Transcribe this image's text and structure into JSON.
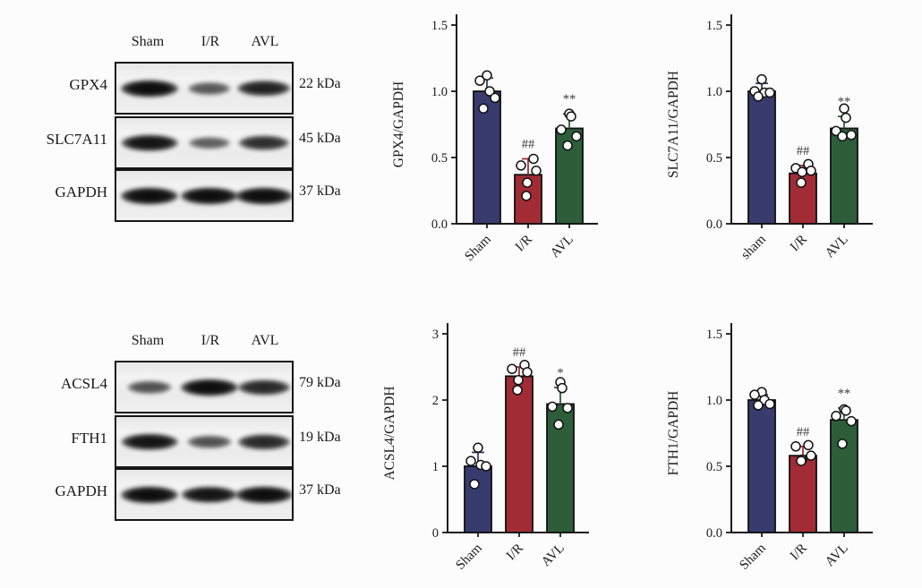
{
  "page": {
    "background": "#fcfcfc"
  },
  "group_colors": {
    "sham": "#383b6d",
    "ir": "#a12c35",
    "avl": "#2d5e39"
  },
  "blot_panels": [
    {
      "name": "ferroptosis-markers-top",
      "lane_headers": [
        "Sham",
        "I/R",
        "AVL"
      ],
      "rows": [
        {
          "protein": "GPX4",
          "weight": "22 kDa",
          "band_intensities": [
            1.0,
            0.45,
            0.85
          ]
        },
        {
          "protein": "SLC7A11",
          "weight": "45 kDa",
          "band_intensities": [
            0.95,
            0.4,
            0.75
          ]
        },
        {
          "protein": "GAPDH",
          "weight": "37 kDa",
          "band_intensities": [
            1.0,
            1.0,
            1.0
          ]
        }
      ]
    },
    {
      "name": "ferroptosis-markers-bottom",
      "lane_headers": [
        "Sham",
        "I/R",
        "AVL"
      ],
      "rows": [
        {
          "protein": "ACSL4",
          "weight": "79 kDa",
          "band_intensities": [
            0.5,
            1.0,
            0.8
          ]
        },
        {
          "protein": "FTH1",
          "weight": "19 kDa",
          "band_intensities": [
            0.95,
            0.5,
            0.8
          ]
        },
        {
          "protein": "GAPDH",
          "weight": "37 kDa",
          "band_intensities": [
            1.0,
            0.95,
            1.0
          ]
        }
      ]
    }
  ],
  "chart_data": [
    {
      "type": "bar",
      "title": "",
      "xlabel": "",
      "ylabel": "GPX4/GAPDH",
      "categories": [
        "Sham",
        "I/R",
        "AVL"
      ],
      "ylim": [
        0,
        1.5
      ],
      "yticks": [
        "0.0",
        "0.5",
        "1.0",
        "1.5"
      ],
      "grid": false,
      "legend": false,
      "bar_colors": [
        "#383b6d",
        "#a12c35",
        "#2d5e39"
      ],
      "series": [
        {
          "name": "Sham",
          "mean": 1.0,
          "sd_top": 1.1,
          "points": [
            1.12,
            1.08,
            1.0,
            0.95,
            0.87
          ],
          "annotation": ""
        },
        {
          "name": "I/R",
          "mean": 0.37,
          "sd_top": 0.49,
          "points": [
            0.49,
            0.44,
            0.4,
            0.31,
            0.21
          ],
          "annotation": "##"
        },
        {
          "name": "AVL",
          "mean": 0.72,
          "sd_top": 0.83,
          "points": [
            0.83,
            0.81,
            0.71,
            0.66,
            0.59
          ],
          "annotation": "**"
        }
      ]
    },
    {
      "type": "bar",
      "title": "",
      "xlabel": "",
      "ylabel": "SLC7A11/GAPDH",
      "categories": [
        "sham",
        "I/R",
        "AVL"
      ],
      "ylim": [
        0,
        1.5
      ],
      "yticks": [
        "0.0",
        "0.5",
        "1.0",
        "1.5"
      ],
      "grid": false,
      "legend": false,
      "bar_colors": [
        "#383b6d",
        "#a12c35",
        "#2d5e39"
      ],
      "series": [
        {
          "name": "sham",
          "mean": 1.0,
          "sd_top": 1.06,
          "points": [
            1.09,
            1.0,
            0.99,
            0.99,
            0.96
          ],
          "annotation": ""
        },
        {
          "name": "I/R",
          "mean": 0.38,
          "sd_top": 0.44,
          "points": [
            0.45,
            0.42,
            0.4,
            0.39,
            0.31
          ],
          "annotation": "##"
        },
        {
          "name": "AVL",
          "mean": 0.72,
          "sd_top": 0.81,
          "points": [
            0.87,
            0.8,
            0.7,
            0.67,
            0.66
          ],
          "annotation": "**"
        }
      ]
    },
    {
      "type": "bar",
      "title": "",
      "xlabel": "",
      "ylabel": "ACSL4/GAPDH",
      "categories": [
        "Sham",
        "I/R",
        "AVL"
      ],
      "ylim": [
        0,
        3
      ],
      "yticks": [
        "0",
        "1",
        "2",
        "3"
      ],
      "grid": false,
      "legend": false,
      "bar_colors": [
        "#383b6d",
        "#a12c35",
        "#2d5e39"
      ],
      "series": [
        {
          "name": "Sham",
          "mean": 1.0,
          "sd_top": 1.21,
          "points": [
            1.28,
            1.08,
            1.02,
            1.0,
            0.73
          ],
          "annotation": ""
        },
        {
          "name": "I/R",
          "mean": 2.36,
          "sd_top": 2.5,
          "points": [
            2.53,
            2.47,
            2.42,
            2.3,
            2.15
          ],
          "annotation": "##"
        },
        {
          "name": "AVL",
          "mean": 1.94,
          "sd_top": 2.19,
          "points": [
            2.27,
            2.18,
            1.9,
            1.88,
            1.63
          ],
          "annotation": "*"
        }
      ]
    },
    {
      "type": "bar",
      "title": "",
      "xlabel": "",
      "ylabel": "FTH1/GAPDH",
      "categories": [
        "Sham",
        "I/R",
        "AVL"
      ],
      "ylim": [
        0,
        1.5
      ],
      "yticks": [
        "0.0",
        "0.5",
        "1.0",
        "1.5"
      ],
      "grid": false,
      "legend": false,
      "bar_colors": [
        "#383b6d",
        "#a12c35",
        "#2d5e39"
      ],
      "series": [
        {
          "name": "Sham",
          "mean": 1.0,
          "sd_top": 1.04,
          "points": [
            1.06,
            1.04,
            1.0,
            0.97,
            0.96
          ],
          "annotation": ""
        },
        {
          "name": "I/R",
          "mean": 0.58,
          "sd_top": 0.65,
          "points": [
            0.66,
            0.65,
            0.58,
            0.55,
            0.54
          ],
          "annotation": "##"
        },
        {
          "name": "AVL",
          "mean": 0.85,
          "sd_top": 0.94,
          "points": [
            0.93,
            0.92,
            0.88,
            0.84,
            0.67
          ],
          "annotation": "**"
        }
      ]
    }
  ]
}
